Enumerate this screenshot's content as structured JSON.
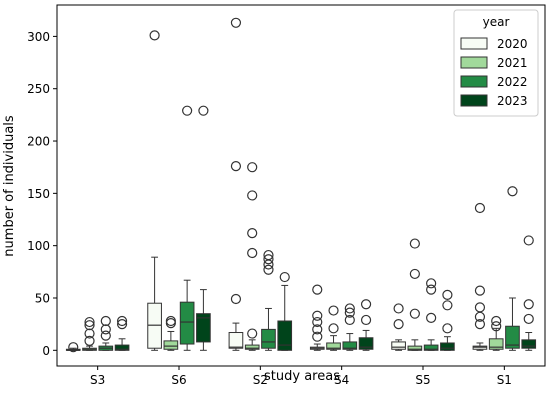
{
  "chart_data": {
    "type": "box",
    "title": "",
    "xlabel": "study areas",
    "ylabel": "number of individuals",
    "ylim": [
      -15,
      330
    ],
    "yticks": [
      0,
      50,
      100,
      150,
      200,
      250,
      300
    ],
    "categories": [
      "S3",
      "S6",
      "S2",
      "S4",
      "S5",
      "S1"
    ],
    "grid": false,
    "legend": {
      "title": "year",
      "placement": "top-right"
    },
    "series": [
      {
        "name": "2020",
        "color": "#f7fcf5",
        "boxes": [
          {
            "q1": 0,
            "median": 0,
            "q3": 1,
            "whisker_low": 0,
            "whisker_high": 2,
            "outliers": [
              3
            ]
          },
          {
            "q1": 2,
            "median": 24,
            "q3": 45,
            "whisker_low": 0,
            "whisker_high": 89,
            "outliers": [
              301
            ]
          },
          {
            "q1": 2,
            "median": 3,
            "q3": 17,
            "whisker_low": 0,
            "whisker_high": 26,
            "outliers": [
              49,
              176,
              313
            ]
          },
          {
            "q1": 1,
            "median": 2,
            "q3": 3,
            "whisker_low": 0,
            "whisker_high": 6,
            "outliers": [
              13,
              20,
              27,
              33,
              58
            ]
          },
          {
            "q1": 1,
            "median": 3,
            "q3": 8,
            "whisker_low": 0,
            "whisker_high": 10,
            "outliers": [
              25,
              40
            ]
          },
          {
            "q1": 1,
            "median": 3,
            "q3": 4,
            "whisker_low": 0,
            "whisker_high": 7,
            "outliers": [
              25,
              32,
              41,
              57,
              136
            ]
          }
        ]
      },
      {
        "name": "2021",
        "color": "#a1d99b",
        "boxes": [
          {
            "q1": 0,
            "median": 1,
            "q3": 2,
            "whisker_low": 0,
            "whisker_high": 4,
            "outliers": [
              9,
              16,
              24,
              27
            ]
          },
          {
            "q1": 1,
            "median": 4,
            "q3": 9,
            "whisker_low": 0,
            "whisker_high": 18,
            "outliers": [
              26,
              28
            ]
          },
          {
            "q1": 1,
            "median": 2,
            "q3": 5,
            "whisker_low": 0,
            "whisker_high": 10,
            "outliers": [
              16,
              93,
              112,
              148,
              175
            ]
          },
          {
            "q1": 1,
            "median": 2,
            "q3": 7,
            "whisker_low": 0,
            "whisker_high": 14,
            "outliers": [
              21,
              38
            ]
          },
          {
            "q1": 0,
            "median": 1,
            "q3": 4,
            "whisker_low": 0,
            "whisker_high": 10,
            "outliers": [
              35,
              73,
              102
            ]
          },
          {
            "q1": 1,
            "median": 3,
            "q3": 11,
            "whisker_low": 0,
            "whisker_high": 21,
            "outliers": [
              23,
              28
            ]
          }
        ]
      },
      {
        "name": "2022",
        "color": "#238b45",
        "boxes": [
          {
            "q1": 0,
            "median": 2,
            "q3": 4,
            "whisker_low": 0,
            "whisker_high": 7,
            "outliers": [
              14,
              20,
              28
            ]
          },
          {
            "q1": 6,
            "median": 27,
            "q3": 46,
            "whisker_low": 0,
            "whisker_high": 67,
            "outliers": [
              229
            ]
          },
          {
            "q1": 2,
            "median": 8,
            "q3": 20,
            "whisker_low": 0,
            "whisker_high": 40,
            "outliers": [
              77,
              82,
              87,
              91
            ]
          },
          {
            "q1": 1,
            "median": 2,
            "q3": 8,
            "whisker_low": 0,
            "whisker_high": 16,
            "outliers": [
              29,
              36,
              40
            ]
          },
          {
            "q1": 0,
            "median": 1,
            "q3": 5,
            "whisker_low": 0,
            "whisker_high": 10,
            "outliers": [
              31,
              58,
              64
            ]
          },
          {
            "q1": 2,
            "median": 5,
            "q3": 23,
            "whisker_low": 0,
            "whisker_high": 50,
            "outliers": [
              152
            ]
          }
        ]
      },
      {
        "name": "2023",
        "color": "#00441b",
        "boxes": [
          {
            "q1": 0,
            "median": 1,
            "q3": 5,
            "whisker_low": 0,
            "whisker_high": 11,
            "outliers": [
              25,
              28
            ]
          },
          {
            "q1": 8,
            "median": 31,
            "q3": 35,
            "whisker_low": 0,
            "whisker_high": 58,
            "outliers": [
              229
            ]
          },
          {
            "q1": 0,
            "median": 5,
            "q3": 28,
            "whisker_low": 0,
            "whisker_high": 62,
            "outliers": [
              70
            ]
          },
          {
            "q1": 1,
            "median": 3,
            "q3": 12,
            "whisker_low": 0,
            "whisker_high": 19,
            "outliers": [
              29,
              44
            ]
          },
          {
            "q1": 0,
            "median": 2,
            "q3": 7,
            "whisker_low": 0,
            "whisker_high": 13,
            "outliers": [
              21,
              43,
              53
            ]
          },
          {
            "q1": 2,
            "median": 4,
            "q3": 10,
            "whisker_low": 0,
            "whisker_high": 17,
            "outliers": [
              30,
              44,
              105
            ]
          }
        ]
      }
    ]
  }
}
